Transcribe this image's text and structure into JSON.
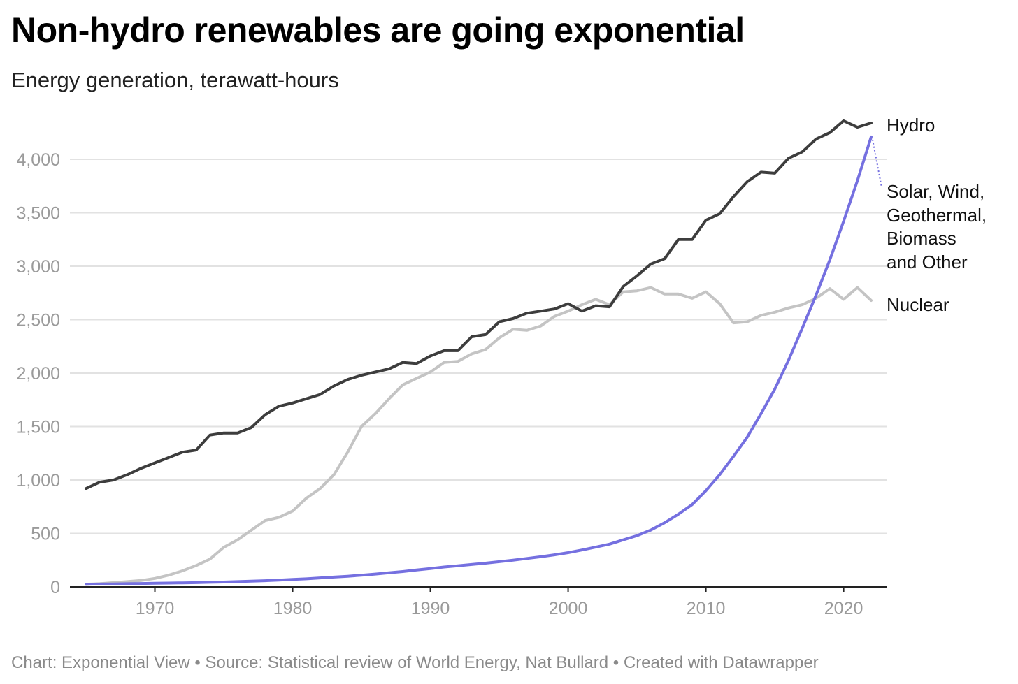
{
  "title": "Non-hydro renewables are going exponential",
  "subtitle": "Energy generation, terawatt-hours",
  "footer": "Chart: Exponential View • Source: Statistical review of World Energy, Nat Bullard • Created with Datawrapper",
  "colors": {
    "hydro": "#3d3d3d",
    "nuclear": "#c4c4c4",
    "renewables": "#7570e0",
    "grid": "#e2e2e2",
    "tick_text": "#9a9a9a"
  },
  "chart_data": {
    "type": "line",
    "title": "Non-hydro renewables are going exponential",
    "subtitle": "Energy generation, terawatt-hours",
    "xlabel": "",
    "ylabel": "",
    "xlim": [
      1965,
      2022
    ],
    "ylim": [
      0,
      4400
    ],
    "x_ticks": [
      "1970",
      "1980",
      "1990",
      "2000",
      "2010",
      "2020"
    ],
    "y_ticks": [
      "0",
      "500",
      "1,000",
      "1,500",
      "2,000",
      "2,500",
      "3,000",
      "3,500",
      "4,000"
    ],
    "y_tick_values": [
      0,
      500,
      1000,
      1500,
      2000,
      2500,
      3000,
      3500,
      4000
    ],
    "grid": true,
    "legend": "direct labels at right end of lines",
    "x": [
      1965,
      1966,
      1967,
      1968,
      1969,
      1970,
      1971,
      1972,
      1973,
      1974,
      1975,
      1976,
      1977,
      1978,
      1979,
      1980,
      1981,
      1982,
      1983,
      1984,
      1985,
      1986,
      1987,
      1988,
      1989,
      1990,
      1991,
      1992,
      1993,
      1994,
      1995,
      1996,
      1997,
      1998,
      1999,
      2000,
      2001,
      2002,
      2003,
      2004,
      2005,
      2006,
      2007,
      2008,
      2009,
      2010,
      2011,
      2012,
      2013,
      2014,
      2015,
      2016,
      2017,
      2018,
      2019,
      2020,
      2021,
      2022
    ],
    "series": [
      {
        "name": "Hydro",
        "color": "#3d3d3d",
        "values": [
          920,
          980,
          1000,
          1050,
          1110,
          1160,
          1210,
          1260,
          1280,
          1420,
          1440,
          1440,
          1490,
          1610,
          1690,
          1720,
          1760,
          1800,
          1880,
          1940,
          1980,
          2010,
          2040,
          2100,
          2090,
          2160,
          2210,
          2210,
          2340,
          2360,
          2480,
          2510,
          2560,
          2580,
          2600,
          2650,
          2580,
          2630,
          2620,
          2810,
          2910,
          3020,
          3070,
          3250,
          3250,
          3430,
          3490,
          3650,
          3790,
          3880,
          3870,
          4010,
          4070,
          4190,
          4250,
          4360,
          4300,
          4340
        ]
      },
      {
        "name": "Solar, Wind, Geothermal, Biomass and Other",
        "color": "#7570e0",
        "values": [
          25,
          27,
          28,
          30,
          32,
          34,
          36,
          38,
          40,
          43,
          46,
          50,
          54,
          58,
          64,
          70,
          76,
          84,
          92,
          100,
          110,
          120,
          132,
          144,
          158,
          172,
          186,
          198,
          210,
          222,
          236,
          250,
          266,
          282,
          300,
          320,
          345,
          372,
          400,
          440,
          480,
          532,
          600,
          680,
          770,
          900,
          1050,
          1220,
          1400,
          1620,
          1850,
          2120,
          2420,
          2730,
          3060,
          3420,
          3800,
          4210
        ]
      },
      {
        "name": "Nuclear",
        "color": "#c4c4c4",
        "values": [
          25,
          30,
          40,
          50,
          60,
          80,
          110,
          150,
          200,
          260,
          370,
          440,
          530,
          620,
          650,
          710,
          830,
          920,
          1050,
          1260,
          1500,
          1620,
          1760,
          1890,
          1950,
          2010,
          2100,
          2110,
          2180,
          2220,
          2330,
          2410,
          2400,
          2440,
          2530,
          2580,
          2640,
          2690,
          2640,
          2760,
          2770,
          2800,
          2740,
          2740,
          2700,
          2760,
          2650,
          2470,
          2480,
          2540,
          2570,
          2610,
          2640,
          2700,
          2790,
          2690,
          2800,
          2680
        ]
      }
    ],
    "labels": {
      "hydro": "Hydro",
      "renewables_lines": [
        "Solar, Wind,",
        "Geothermal,",
        "Biomass",
        "and Other"
      ],
      "nuclear": "Nuclear"
    }
  }
}
